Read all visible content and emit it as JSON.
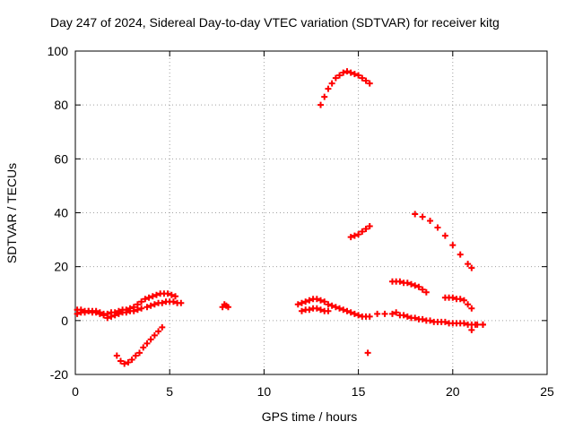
{
  "chart_data": {
    "type": "scatter",
    "title": "Day 247 of 2024, Sidereal Day-to-day VTEC variation (SDTVAR) for receiver kitg",
    "xlabel": "GPS time / hours",
    "ylabel": "SDTVAR / TECUs",
    "xlim": [
      0,
      25
    ],
    "ylim": [
      -20,
      100
    ],
    "xticks": [
      0,
      5,
      10,
      15,
      20,
      25
    ],
    "yticks": [
      -20,
      0,
      20,
      40,
      60,
      80,
      100
    ],
    "grid": true,
    "marker": "+",
    "color": "#ff0000",
    "series": [
      {
        "name": "arc-1",
        "x": [
          0.1,
          0.3,
          0.5,
          0.7,
          0.9,
          1.1,
          1.3,
          1.5,
          1.7,
          1.9,
          2.1,
          2.3,
          2.5,
          2.7,
          2.9,
          3.1,
          3.3,
          3.5,
          3.7,
          3.9,
          4.1,
          4.3,
          4.5,
          4.7,
          4.9,
          5.1,
          5.3
        ],
        "y": [
          4,
          4,
          3.5,
          3.5,
          3,
          3,
          2.5,
          2.5,
          2.5,
          3,
          3,
          3.5,
          4,
          4,
          4.5,
          5,
          6,
          7,
          8,
          8.5,
          9,
          9.5,
          10,
          10,
          10,
          9.5,
          9
        ]
      },
      {
        "name": "arc-2",
        "x": [
          0.1,
          0.3,
          0.5,
          0.7,
          0.9,
          1.1,
          1.3,
          1.5,
          1.7,
          1.9,
          2.1,
          2.3,
          2.5,
          2.7,
          2.9,
          3.1,
          3.3,
          3.5
        ],
        "y": [
          2.5,
          3,
          3,
          3.5,
          3.5,
          3.5,
          3,
          2,
          1,
          1.5,
          2,
          2.5,
          3,
          3,
          3.5,
          3.5,
          4,
          4.5
        ]
      },
      {
        "name": "arc-3",
        "x": [
          3.8,
          4.0,
          4.2,
          4.4,
          4.6,
          4.8,
          5.0,
          5.2,
          5.4,
          5.6
        ],
        "y": [
          5,
          5.5,
          6,
          6.5,
          6.5,
          7,
          7,
          7,
          6.5,
          6.5
        ]
      },
      {
        "name": "arc-4",
        "x": [
          2.2,
          2.4,
          2.6,
          2.8,
          3.0,
          3.2,
          3.4,
          3.6,
          3.8,
          4.0,
          4.2,
          4.4,
          4.6
        ],
        "y": [
          -13,
          -15,
          -16,
          -15.5,
          -14.5,
          -13,
          -12,
          -10,
          -8.5,
          -7,
          -5.5,
          -4,
          -2.5
        ]
      },
      {
        "name": "arc-5",
        "x": [
          7.8,
          7.9,
          8.0,
          8.1
        ],
        "y": [
          5,
          6,
          5.5,
          5
        ]
      },
      {
        "name": "arc-6",
        "x": [
          11.8,
          12.0,
          12.2,
          12.4,
          12.6,
          12.8,
          13.0,
          13.2,
          13.4,
          13.6,
          13.8,
          14.0,
          14.2,
          14.4,
          14.6,
          14.8,
          15.0,
          15.2,
          15.4,
          15.6
        ],
        "y": [
          6,
          6.5,
          7,
          7.5,
          8,
          8,
          7.5,
          7,
          6,
          5.5,
          5,
          4.5,
          4,
          3.5,
          3,
          2.5,
          2,
          1.5,
          1.5,
          1.5
        ]
      },
      {
        "name": "arc-7",
        "x": [
          12.0,
          12.2,
          12.4,
          12.6,
          12.8,
          13.0,
          13.2,
          13.4
        ],
        "y": [
          3.5,
          4,
          4,
          4.5,
          4.5,
          4,
          3.5,
          3.5
        ]
      },
      {
        "name": "arc-8",
        "x": [
          13.0,
          13.2,
          13.4,
          13.6,
          13.8,
          14.0,
          14.2,
          14.4,
          14.6,
          14.8,
          15.0,
          15.2,
          15.4,
          15.6
        ],
        "y": [
          80,
          83,
          86,
          88,
          90,
          91,
          92,
          92.5,
          92,
          91.5,
          91,
          90,
          89,
          88
        ]
      },
      {
        "name": "arc-9",
        "x": [
          14.6,
          14.8,
          15.0,
          15.2,
          15.4,
          15.6
        ],
        "y": [
          31,
          31.5,
          32,
          33,
          34,
          35
        ]
      },
      {
        "name": "arc-10",
        "x": [
          15.5
        ],
        "y": [
          -12
        ]
      },
      {
        "name": "arc-11",
        "x": [
          16.0,
          16.4,
          16.8,
          17.2,
          17.6,
          18.0,
          18.4,
          18.8,
          19.2,
          19.6,
          20.0,
          20.4,
          20.8,
          21.2,
          21.6
        ],
        "y": [
          2.5,
          2.5,
          2.5,
          2,
          1.5,
          1,
          0.5,
          0,
          -0.5,
          -0.5,
          -1,
          -1,
          -1.5,
          -1.5,
          -1.5
        ]
      },
      {
        "name": "arc-12",
        "x": [
          16.8,
          17.0,
          17.2,
          17.4,
          17.6,
          17.8,
          18.0,
          18.2,
          18.4,
          18.6
        ],
        "y": [
          14.5,
          14.5,
          14.5,
          14,
          14,
          13.5,
          13,
          12.5,
          11.5,
          10.5
        ]
      },
      {
        "name": "arc-13",
        "x": [
          17.0,
          17.4,
          17.8,
          18.2,
          18.6,
          19.0,
          19.4,
          19.8,
          20.2,
          20.6,
          21.0
        ],
        "y": [
          3,
          2,
          1,
          0.5,
          0,
          -0.5,
          -0.5,
          -1,
          -1,
          -1,
          -1.5
        ]
      },
      {
        "name": "arc-14",
        "x": [
          18.0,
          18.4,
          18.8,
          19.2,
          19.6,
          20.0,
          20.4,
          20.8,
          21.0
        ],
        "y": [
          39.5,
          38.5,
          37,
          34.5,
          31.5,
          28,
          24.5,
          21,
          19.5
        ]
      },
      {
        "name": "arc-15",
        "x": [
          19.6,
          19.8,
          20.0,
          20.2,
          20.4,
          20.6,
          20.8,
          21.0
        ],
        "y": [
          8.5,
          8.5,
          8.5,
          8,
          8,
          7.5,
          6,
          4.5
        ]
      },
      {
        "name": "arc-16",
        "x": [
          21.0,
          21.3,
          21.6
        ],
        "y": [
          -3.5,
          -1.5,
          -1.5
        ]
      }
    ]
  }
}
